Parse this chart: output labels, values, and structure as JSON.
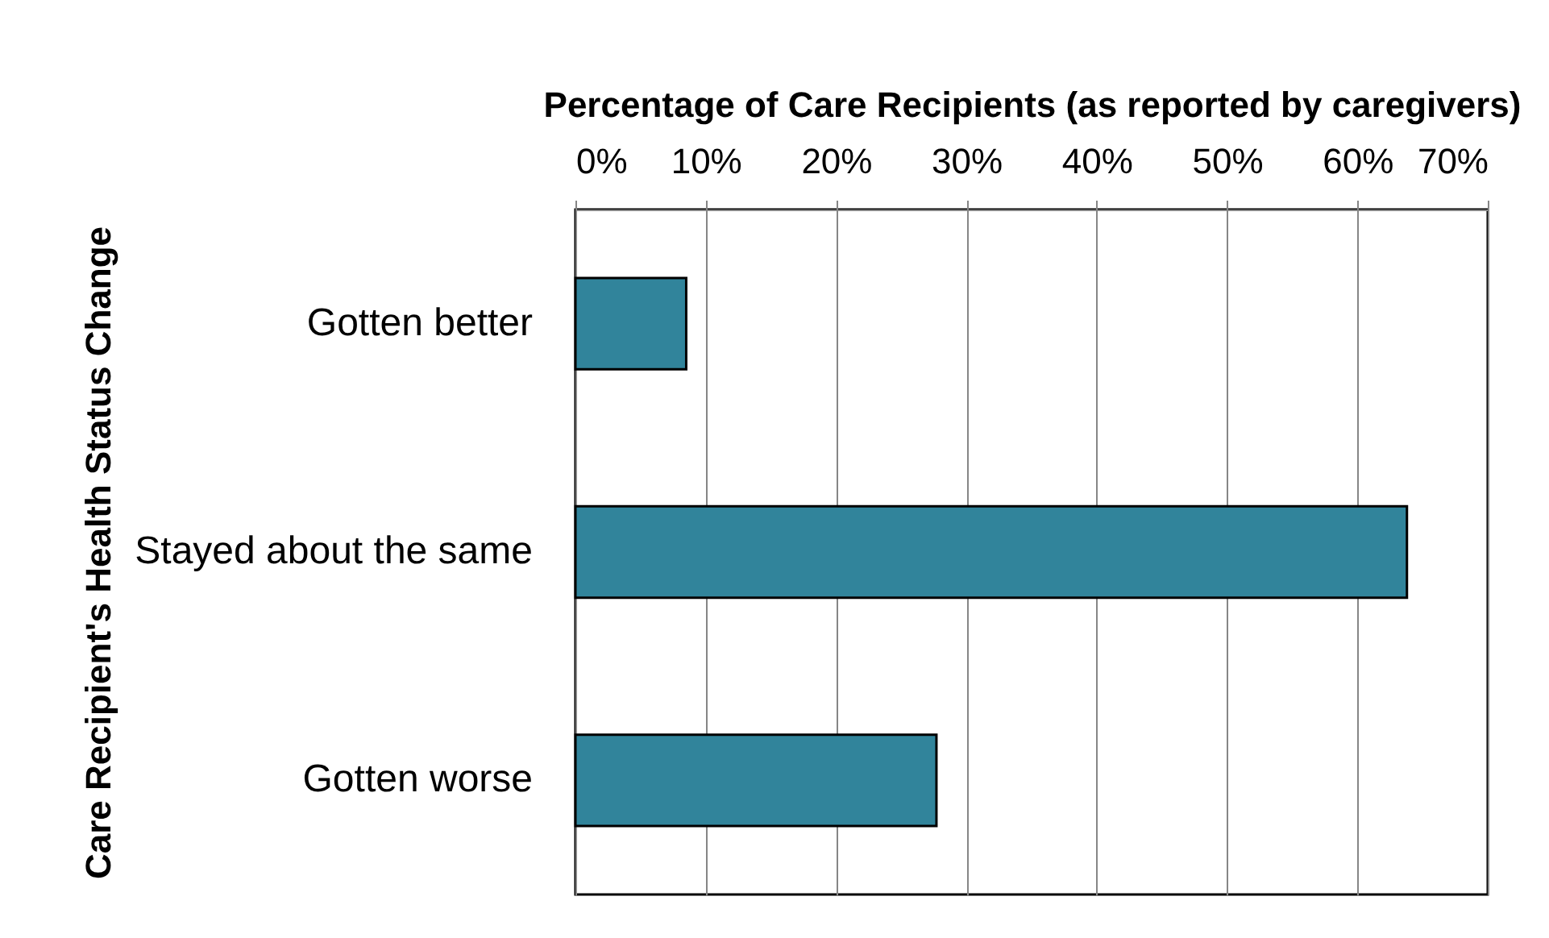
{
  "chart_data": {
    "type": "bar",
    "orientation": "horizontal",
    "xlabel": "Percentage of Care Recipients (as reported by caregivers)",
    "ylabel": "Care Recipient's Health Status Change",
    "categories": [
      "Gotten better",
      "Stayed about the same",
      "Gotten worse"
    ],
    "values": [
      8.5,
      63.8,
      27.7
    ],
    "color": "#31849b",
    "xlim": [
      0,
      70
    ],
    "xticks": [
      {
        "value": 0,
        "label": "0%"
      },
      {
        "value": 10,
        "label": "10%"
      },
      {
        "value": 20,
        "label": "20%"
      },
      {
        "value": 30,
        "label": "30%"
      },
      {
        "value": 40,
        "label": "40%"
      },
      {
        "value": 50,
        "label": "50%"
      },
      {
        "value": 60,
        "label": "60%"
      },
      {
        "value": 70,
        "label": "70%"
      }
    ],
    "grid": "x"
  }
}
